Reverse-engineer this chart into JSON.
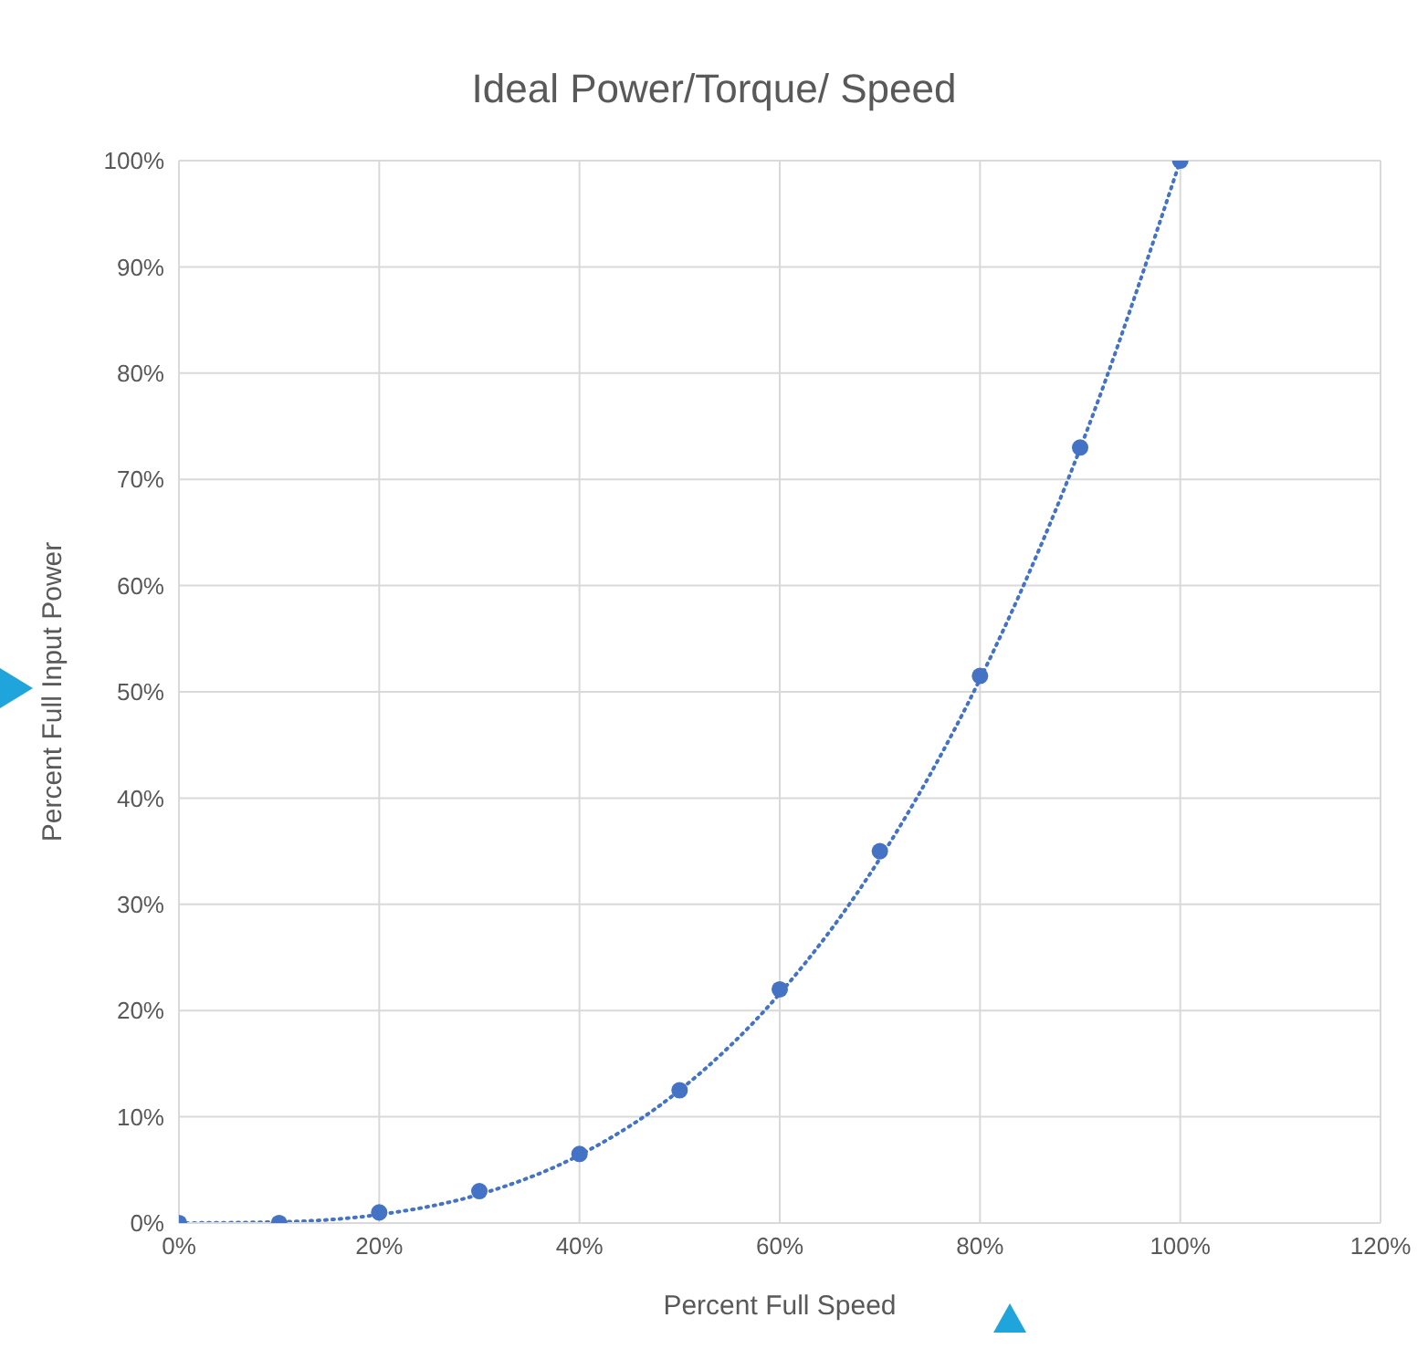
{
  "chart_data": {
    "type": "scatter",
    "title": "Ideal Power/Torque/ Speed",
    "xlabel": "Percent Full Speed",
    "ylabel": "Percent Full Input Power",
    "xlim": [
      0,
      120
    ],
    "xticks": [
      {
        "value": 0,
        "label": "0%"
      },
      {
        "value": 20,
        "label": "20%"
      },
      {
        "value": 40,
        "label": "40%"
      },
      {
        "value": 60,
        "label": "60%"
      },
      {
        "value": 80,
        "label": "80%"
      },
      {
        "value": 100,
        "label": "100%"
      },
      {
        "value": 120,
        "label": "120%"
      }
    ],
    "ylim": [
      0,
      100
    ],
    "yticks": [
      {
        "value": 0,
        "label": "0%"
      },
      {
        "value": 10,
        "label": "10%"
      },
      {
        "value": 20,
        "label": "20%"
      },
      {
        "value": 30,
        "label": "30%"
      },
      {
        "value": 40,
        "label": "40%"
      },
      {
        "value": 50,
        "label": "50%"
      },
      {
        "value": 60,
        "label": "60%"
      },
      {
        "value": 70,
        "label": "70%"
      },
      {
        "value": 80,
        "label": "80%"
      },
      {
        "value": 90,
        "label": "90%"
      },
      {
        "value": 100,
        "label": "100%"
      }
    ],
    "grid": true,
    "series": [
      {
        "color": "#4472c4",
        "marker": "circle",
        "x": [
          0,
          10,
          20,
          30,
          40,
          50,
          60,
          70,
          80,
          90,
          100
        ],
        "values": [
          0,
          0,
          1,
          3,
          6.5,
          12.5,
          22,
          35,
          51.5,
          73,
          100
        ]
      },
      {
        "type": "line",
        "color": "#4472c4",
        "line_style": "dotted",
        "marker": "none",
        "x": [
          0,
          10,
          20,
          30,
          40,
          50,
          60,
          70,
          80,
          90,
          100
        ],
        "values": [
          0,
          0.1,
          0.8,
          2.7,
          6.4,
          12.5,
          21.6,
          34.3,
          51.2,
          72.9,
          100
        ]
      }
    ]
  }
}
